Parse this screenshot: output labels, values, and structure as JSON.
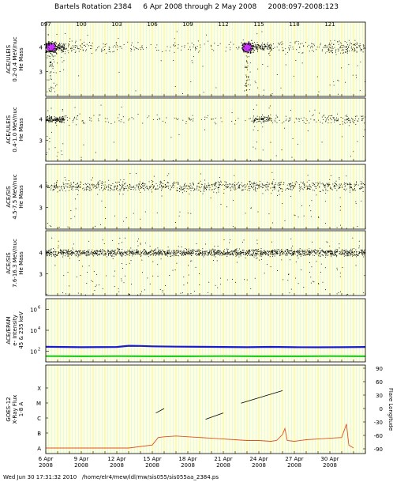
{
  "title": "Bartels Rotation 2384     6 Apr 2008 through 2 May 2008     2008:097-2008:123",
  "footer": "Wed Jun 30 17:31:32 2010   /home/elr4/mew/idl/mw/sis055/sis055aa_2384.ps",
  "colors": {
    "panel_bg": "#ffffe0",
    "grid_yellow": "#eeee66",
    "grid_cyan": "#aaeeee",
    "mass_points": "#000000",
    "he_points": "#cc33ff",
    "proton_line_blue": "#1a1acc",
    "electron_line_green": "#22cc22",
    "xray_red": "#e05020",
    "flare_black": "#000000"
  },
  "doy_ticks": [
    "097",
    "100",
    "103",
    "106",
    "109",
    "112",
    "115",
    "118",
    "121"
  ],
  "chart_data": [
    {
      "type": "scatter",
      "panel": "ULEIS 0.2-0.4",
      "ylabel": [
        "ACE/ULEIS",
        "0.2-0.4 MeV/nuc",
        "He Mass"
      ],
      "yticks": [
        "4",
        "3"
      ],
      "ylim": [
        2,
        5
      ],
      "density": [
        1.0,
        0.25,
        0.12,
        0.15,
        0.08,
        0.06,
        0.08,
        0.12,
        0.08,
        0.05,
        0.05,
        0.7,
        0.15,
        0.12,
        0.15,
        0.4,
        0.35
      ],
      "bursts": [
        {
          "day": 97.4,
          "mass": 4.0,
          "note": "He-3/He-4 enhancement"
        },
        {
          "day": 114.0,
          "mass": 4.0,
          "note": "He-3/He-4 enhancement"
        }
      ]
    },
    {
      "type": "scatter",
      "panel": "ULEIS 0.4-1.0",
      "ylabel": [
        "ACE/ULEIS",
        "0.4-1.0 MeV/nuc",
        "He Mass"
      ],
      "yticks": [
        "4",
        "3"
      ],
      "ylim": [
        2,
        5
      ],
      "density": [
        0.9,
        0.12,
        0.06,
        0.06,
        0.04,
        0.03,
        0.05,
        0.07,
        0.05,
        0.03,
        0.04,
        0.55,
        0.12,
        0.1,
        0.12,
        0.2,
        0.22
      ]
    },
    {
      "type": "scatter",
      "panel": "SIS 4.5-7.5",
      "ylabel": [
        "ACE/SIS",
        "4.5-7.5 MeV/nuc",
        "He Mass"
      ],
      "yticks": [
        "4",
        "3"
      ],
      "ylim": [
        2,
        5
      ],
      "density": [
        0.3,
        0.3,
        0.3,
        0.3,
        0.3,
        0.3,
        0.3,
        0.3,
        0.3,
        0.3,
        0.3,
        0.3,
        0.3,
        0.3,
        0.3,
        0.3,
        0.3
      ]
    },
    {
      "type": "scatter",
      "panel": "SIS 7.6-16.3",
      "ylabel": [
        "ACE/SIS",
        "7.6-16.3 MeV/nuc",
        "He Mass"
      ],
      "yticks": [
        "4",
        "3"
      ],
      "ylim": [
        2,
        5
      ],
      "density": [
        0.55,
        0.55,
        0.55,
        0.55,
        0.55,
        0.55,
        0.55,
        0.55,
        0.55,
        0.55,
        0.55,
        0.55,
        0.55,
        0.55,
        0.55,
        0.55,
        0.55
      ]
    },
    {
      "type": "line",
      "panel": "EPAM",
      "ylabel": [
        "ACE/EPAM",
        "e- Intensity",
        "45 & 235 keV"
      ],
      "yscale": "log",
      "yticks": [
        "10^6",
        "10^4",
        "10^2"
      ],
      "ylim": [
        10,
        10000000
      ],
      "series": [
        {
          "color": "blue",
          "x": [
            97,
            100,
            103,
            104,
            105,
            106,
            108,
            110,
            112,
            114,
            116,
            118,
            120,
            122,
            124
          ],
          "y": [
            270,
            250,
            260,
            340,
            330,
            300,
            280,
            270,
            260,
            250,
            265,
            250,
            245,
            250,
            260
          ]
        },
        {
          "color": "green",
          "x": [
            97,
            100,
            103,
            106,
            109,
            112,
            115,
            118,
            121,
            124
          ],
          "y": [
            35,
            34,
            35,
            34,
            34,
            35,
            34,
            34,
            35,
            34
          ]
        }
      ]
    },
    {
      "type": "line",
      "panel": "GOES",
      "ylabel": [
        "GOES-12",
        "X-Ray Flux",
        "1-8 A"
      ],
      "yticks_left": [
        "X",
        "M",
        "C",
        "B",
        "A"
      ],
      "ylabel_right": "Flare Longitude",
      "yticks_right": [
        "90",
        "60",
        "30",
        "0",
        "-30",
        "-60",
        "-90"
      ],
      "xray_flux": {
        "x": [
          97,
          104,
          106,
          106.5,
          107,
          108,
          110,
          111,
          112,
          113,
          114,
          115,
          116,
          116.5,
          117,
          117.2,
          117.4,
          118,
          119,
          120,
          121,
          122,
          122.4,
          122.6,
          123
        ],
        "level": [
          0,
          0,
          0.2,
          0.7,
          0.75,
          0.8,
          0.7,
          0.65,
          0.6,
          0.55,
          0.5,
          0.5,
          0.45,
          0.5,
          0.9,
          1.3,
          0.5,
          0.45,
          0.55,
          0.6,
          0.65,
          0.7,
          1.6,
          0.2,
          0
        ]
      },
      "flare_longitude": [
        {
          "x": [
            106.3,
            107
          ],
          "y": [
            -10,
            0
          ]
        },
        {
          "x": [
            110.5,
            112
          ],
          "y": [
            -24,
            -10
          ]
        },
        {
          "x": [
            113.5,
            117
          ],
          "y": [
            12,
            40
          ]
        }
      ]
    }
  ],
  "date_ticks": [
    {
      "day": "6 Apr",
      "year": "2008"
    },
    {
      "day": "9 Apr",
      "year": "2008"
    },
    {
      "day": "12 Apr",
      "year": "2008"
    },
    {
      "day": "15 Apr",
      "year": "2008"
    },
    {
      "day": "18 Apr",
      "year": "2008"
    },
    {
      "day": "21 Apr",
      "year": "2008"
    },
    {
      "day": "24 Apr",
      "year": "2008"
    },
    {
      "day": "27 Apr",
      "year": "2008"
    },
    {
      "day": "30 Apr",
      "year": "2008"
    }
  ]
}
